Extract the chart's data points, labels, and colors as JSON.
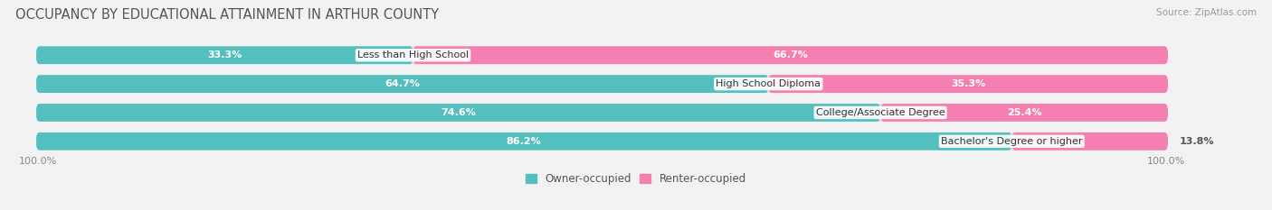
{
  "title": "OCCUPANCY BY EDUCATIONAL ATTAINMENT IN ARTHUR COUNTY",
  "source": "Source: ZipAtlas.com",
  "categories": [
    "Less than High School",
    "High School Diploma",
    "College/Associate Degree",
    "Bachelor's Degree or higher"
  ],
  "owner_values": [
    33.3,
    64.7,
    74.6,
    86.2
  ],
  "renter_values": [
    66.7,
    35.3,
    25.4,
    13.8
  ],
  "owner_color": "#53BFBF",
  "renter_color": "#F47FB0",
  "bar_height": 0.62,
  "background_color": "#f2f2f2",
  "bar_bg_color": "#e2e2e2",
  "title_fontsize": 10.5,
  "label_fontsize": 8.0,
  "tick_fontsize": 8.0,
  "legend_fontsize": 8.5,
  "source_fontsize": 7.5,
  "axis_label_left": "100.0%",
  "axis_label_right": "100.0%",
  "total_width": 100.0,
  "owner_label_threshold": 15.0,
  "renter_label_threshold": 15.0
}
